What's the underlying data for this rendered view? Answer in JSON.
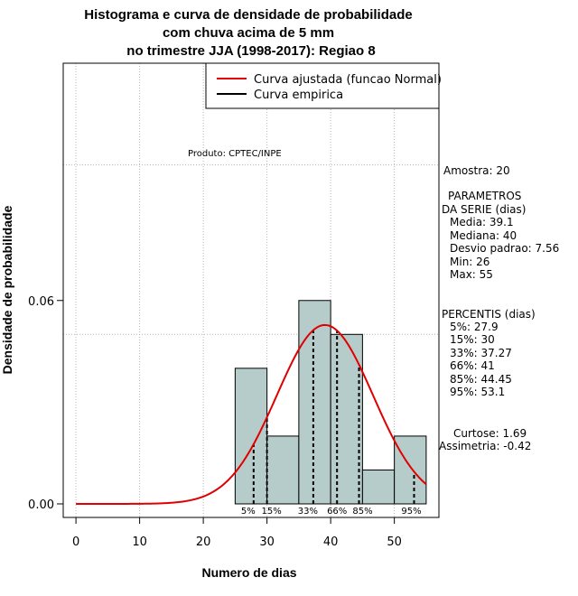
{
  "chart_data": {
    "type": "bar",
    "title": [
      "Histograma e curva de densidade de probabilidade",
      "com chuva acima de 5 mm",
      "no trimestre JJA (1998-2017): Regiao 8"
    ],
    "xlabel": "Numero de dias",
    "ylabel": "Densidade de probabilidade",
    "xlim": [
      -2,
      57
    ],
    "ylim": [
      -0.004,
      0.13
    ],
    "x_ticks": [
      0,
      10,
      20,
      30,
      40,
      50
    ],
    "y_ticks": [
      0.0,
      0.06
    ],
    "y_tick_labels": [
      "0.00",
      "0.06"
    ],
    "grid": true,
    "grid_x": [
      0,
      10,
      20,
      30,
      40,
      50
    ],
    "grid_y": [
      0.05,
      0.1
    ],
    "bins": [
      {
        "x0": 25,
        "x1": 30,
        "density": 0.04
      },
      {
        "x0": 30,
        "x1": 35,
        "density": 0.02
      },
      {
        "x0": 35,
        "x1": 40,
        "density": 0.06
      },
      {
        "x0": 40,
        "x1": 45,
        "density": 0.05
      },
      {
        "x0": 45,
        "x1": 50,
        "density": 0.01
      },
      {
        "x0": 50,
        "x1": 55,
        "density": 0.02
      }
    ],
    "bar_color": "#b6cccb",
    "fitted_curve": {
      "name": "Curva ajustada (funcao Normal)",
      "distribution": "normal",
      "mean": 39.1,
      "sd": 7.56,
      "x_range": [
        0,
        55
      ],
      "color": "#e00000"
    },
    "empirical_curve": {
      "name": "Curva empirica",
      "color": "#000000"
    },
    "percentile_lines": [
      {
        "label": "5%",
        "x": 27.9
      },
      {
        "label": "15%",
        "x": 30
      },
      {
        "label": "33%",
        "x": 37.27
      },
      {
        "label": "66%",
        "x": 41
      },
      {
        "label": "85%",
        "x": 44.45
      },
      {
        "label": "95%",
        "x": 53.1
      }
    ],
    "legend_position": "top-right"
  },
  "credit": "Produto: CPTEC/INPE",
  "side_panel": {
    "sample": "Amostra: 20",
    "params_header_1": "PARAMETROS",
    "params_header_2": "DA SERIE (dias)",
    "media": "Media: 39.1",
    "mediana": "Mediana: 40",
    "desvio": "Desvio padrao: 7.56",
    "min": "Min: 26",
    "max": "Max: 55",
    "percentis_header": "PERCENTIS (dias)",
    "p5": "5%: 27.9",
    "p15": "15%: 30",
    "p33": "33%: 37.27",
    "p66": "66%: 41",
    "p85": "85%: 44.45",
    "p95": "95%: 53.1",
    "curtose": "Curtose: 1.69",
    "assimetria": "Assimetria: -0.42"
  }
}
